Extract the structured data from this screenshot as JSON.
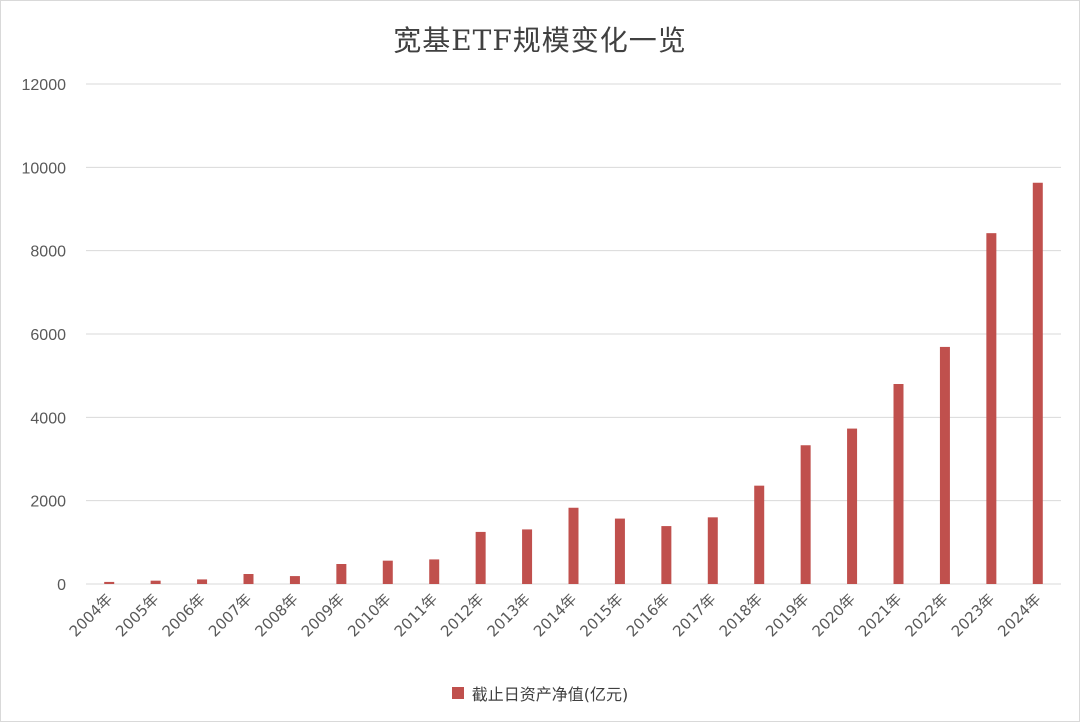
{
  "chart_data": {
    "type": "bar",
    "title": "宽基ETF规模变化一览",
    "xlabel": "",
    "ylabel": "",
    "ylim": [
      0,
      12000
    ],
    "yticks": [
      0,
      2000,
      4000,
      6000,
      8000,
      10000,
      12000
    ],
    "grid": true,
    "legend_position": "bottom",
    "categories": [
      "2004年",
      "2005年",
      "2006年",
      "2007年",
      "2008年",
      "2009年",
      "2010年",
      "2011年",
      "2012年",
      "2013年",
      "2014年",
      "2015年",
      "2016年",
      "2017年",
      "2018年",
      "2019年",
      "2020年",
      "2021年",
      "2022年",
      "2023年",
      "2024年"
    ],
    "series": [
      {
        "name": "截止日资产净值(亿元)",
        "color": "#c0504d",
        "values": [
          50,
          80,
          110,
          240,
          190,
          480,
          560,
          590,
          1250,
          1310,
          1830,
          1570,
          1390,
          1600,
          2360,
          3330,
          3730,
          4800,
          5690,
          8420,
          9630
        ]
      }
    ]
  }
}
